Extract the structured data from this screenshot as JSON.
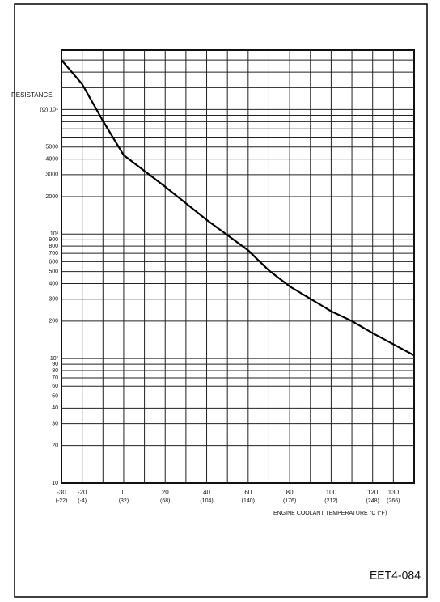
{
  "chart_data": {
    "type": "line",
    "y_label": "RESISTANCE",
    "x_label": "ENGINE COOLANT TEMPERATURE °C (°F)",
    "figure_code": "EET4-084",
    "x": [
      -30,
      -20,
      -10,
      0,
      20,
      40,
      60,
      70,
      80,
      100,
      110,
      120,
      140
    ],
    "series": [
      {
        "color": "#000000",
        "values": [
          25000,
          16000,
          8100,
          4300,
          2400,
          1300,
          740,
          510,
          380,
          240,
          200,
          160,
          106
        ]
      }
    ],
    "xlim": [
      -30,
      140
    ],
    "xticks": [
      -30,
      -20,
      0,
      20,
      40,
      60,
      80,
      100,
      120,
      130
    ],
    "xtick_sublabels": [
      "(-22)",
      "(-4)",
      "(32)",
      "(68)",
      "(104)",
      "(140)",
      "(176)",
      "(212)",
      "(248)",
      "(266)"
    ],
    "x_minor_grid": [
      -10,
      10,
      30,
      50,
      70,
      90,
      110,
      140
    ],
    "ylim": [
      10,
      30000
    ],
    "log_y": true,
    "yticks": [
      10,
      20,
      30,
      40,
      50,
      60,
      70,
      80,
      90,
      {
        "value": 100,
        "label": "10²"
      },
      200,
      300,
      400,
      500,
      600,
      700,
      800,
      900,
      {
        "value": 1000,
        "label": "10³"
      },
      2000,
      3000,
      4000,
      5000,
      {
        "value": 10000,
        "label": "(Ω) 10⁴"
      }
    ],
    "y_minor_grid": [
      6000,
      7000,
      8000,
      9000,
      15000,
      20000,
      25000,
      30000
    ],
    "grid": true
  }
}
